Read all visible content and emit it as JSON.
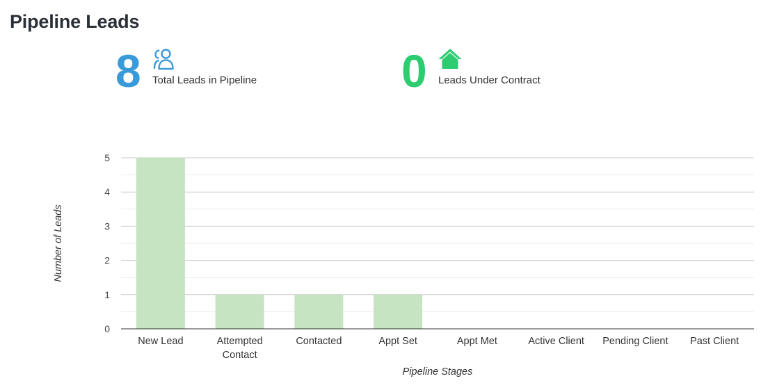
{
  "page": {
    "title": "Pipeline Leads"
  },
  "stats": {
    "total": {
      "value": "8",
      "label": "Total Leads in Pipeline",
      "color": "#3a9ad9",
      "icon": "users-icon"
    },
    "contract": {
      "value": "0",
      "label": "Leads Under Contract",
      "color": "#2ecc71",
      "icon": "house-icon"
    }
  },
  "chart_data": {
    "type": "bar",
    "categories": [
      "New Lead",
      "Attempted Contact",
      "Contacted",
      "Appt Set",
      "Appt Met",
      "Active Client",
      "Pending Client",
      "Past Client"
    ],
    "category_lines": [
      [
        "New Lead"
      ],
      [
        "Attempted",
        "Contact"
      ],
      [
        "Contacted"
      ],
      [
        "Appt Set"
      ],
      [
        "Appt Met"
      ],
      [
        "Active Client"
      ],
      [
        "Pending Client"
      ],
      [
        "Past Client"
      ]
    ],
    "values": [
      5,
      1,
      1,
      1,
      0,
      0,
      0,
      0
    ],
    "xlabel": "Pipeline Stages",
    "ylabel": "Number of Leads",
    "ylim": [
      0,
      5
    ],
    "yticks": [
      "0",
      "1",
      "2",
      "3",
      "4",
      "5"
    ],
    "grid": true,
    "bar_color": "#c6e3c2"
  }
}
